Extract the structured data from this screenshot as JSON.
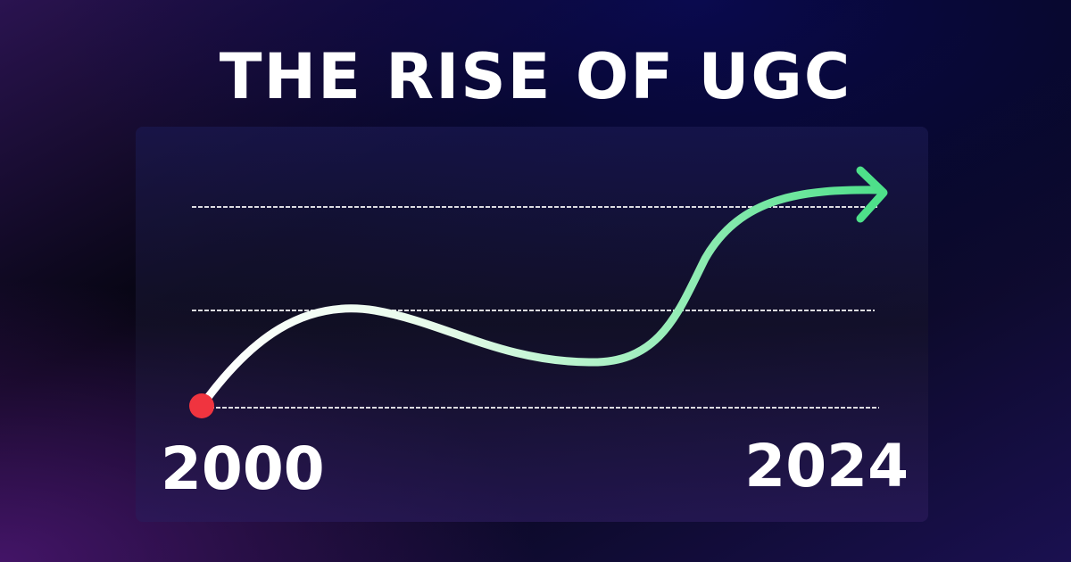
{
  "header": {
    "title": "THE RISE OF UGC"
  },
  "axis": {
    "start": "2000",
    "end": "2024"
  }
}
